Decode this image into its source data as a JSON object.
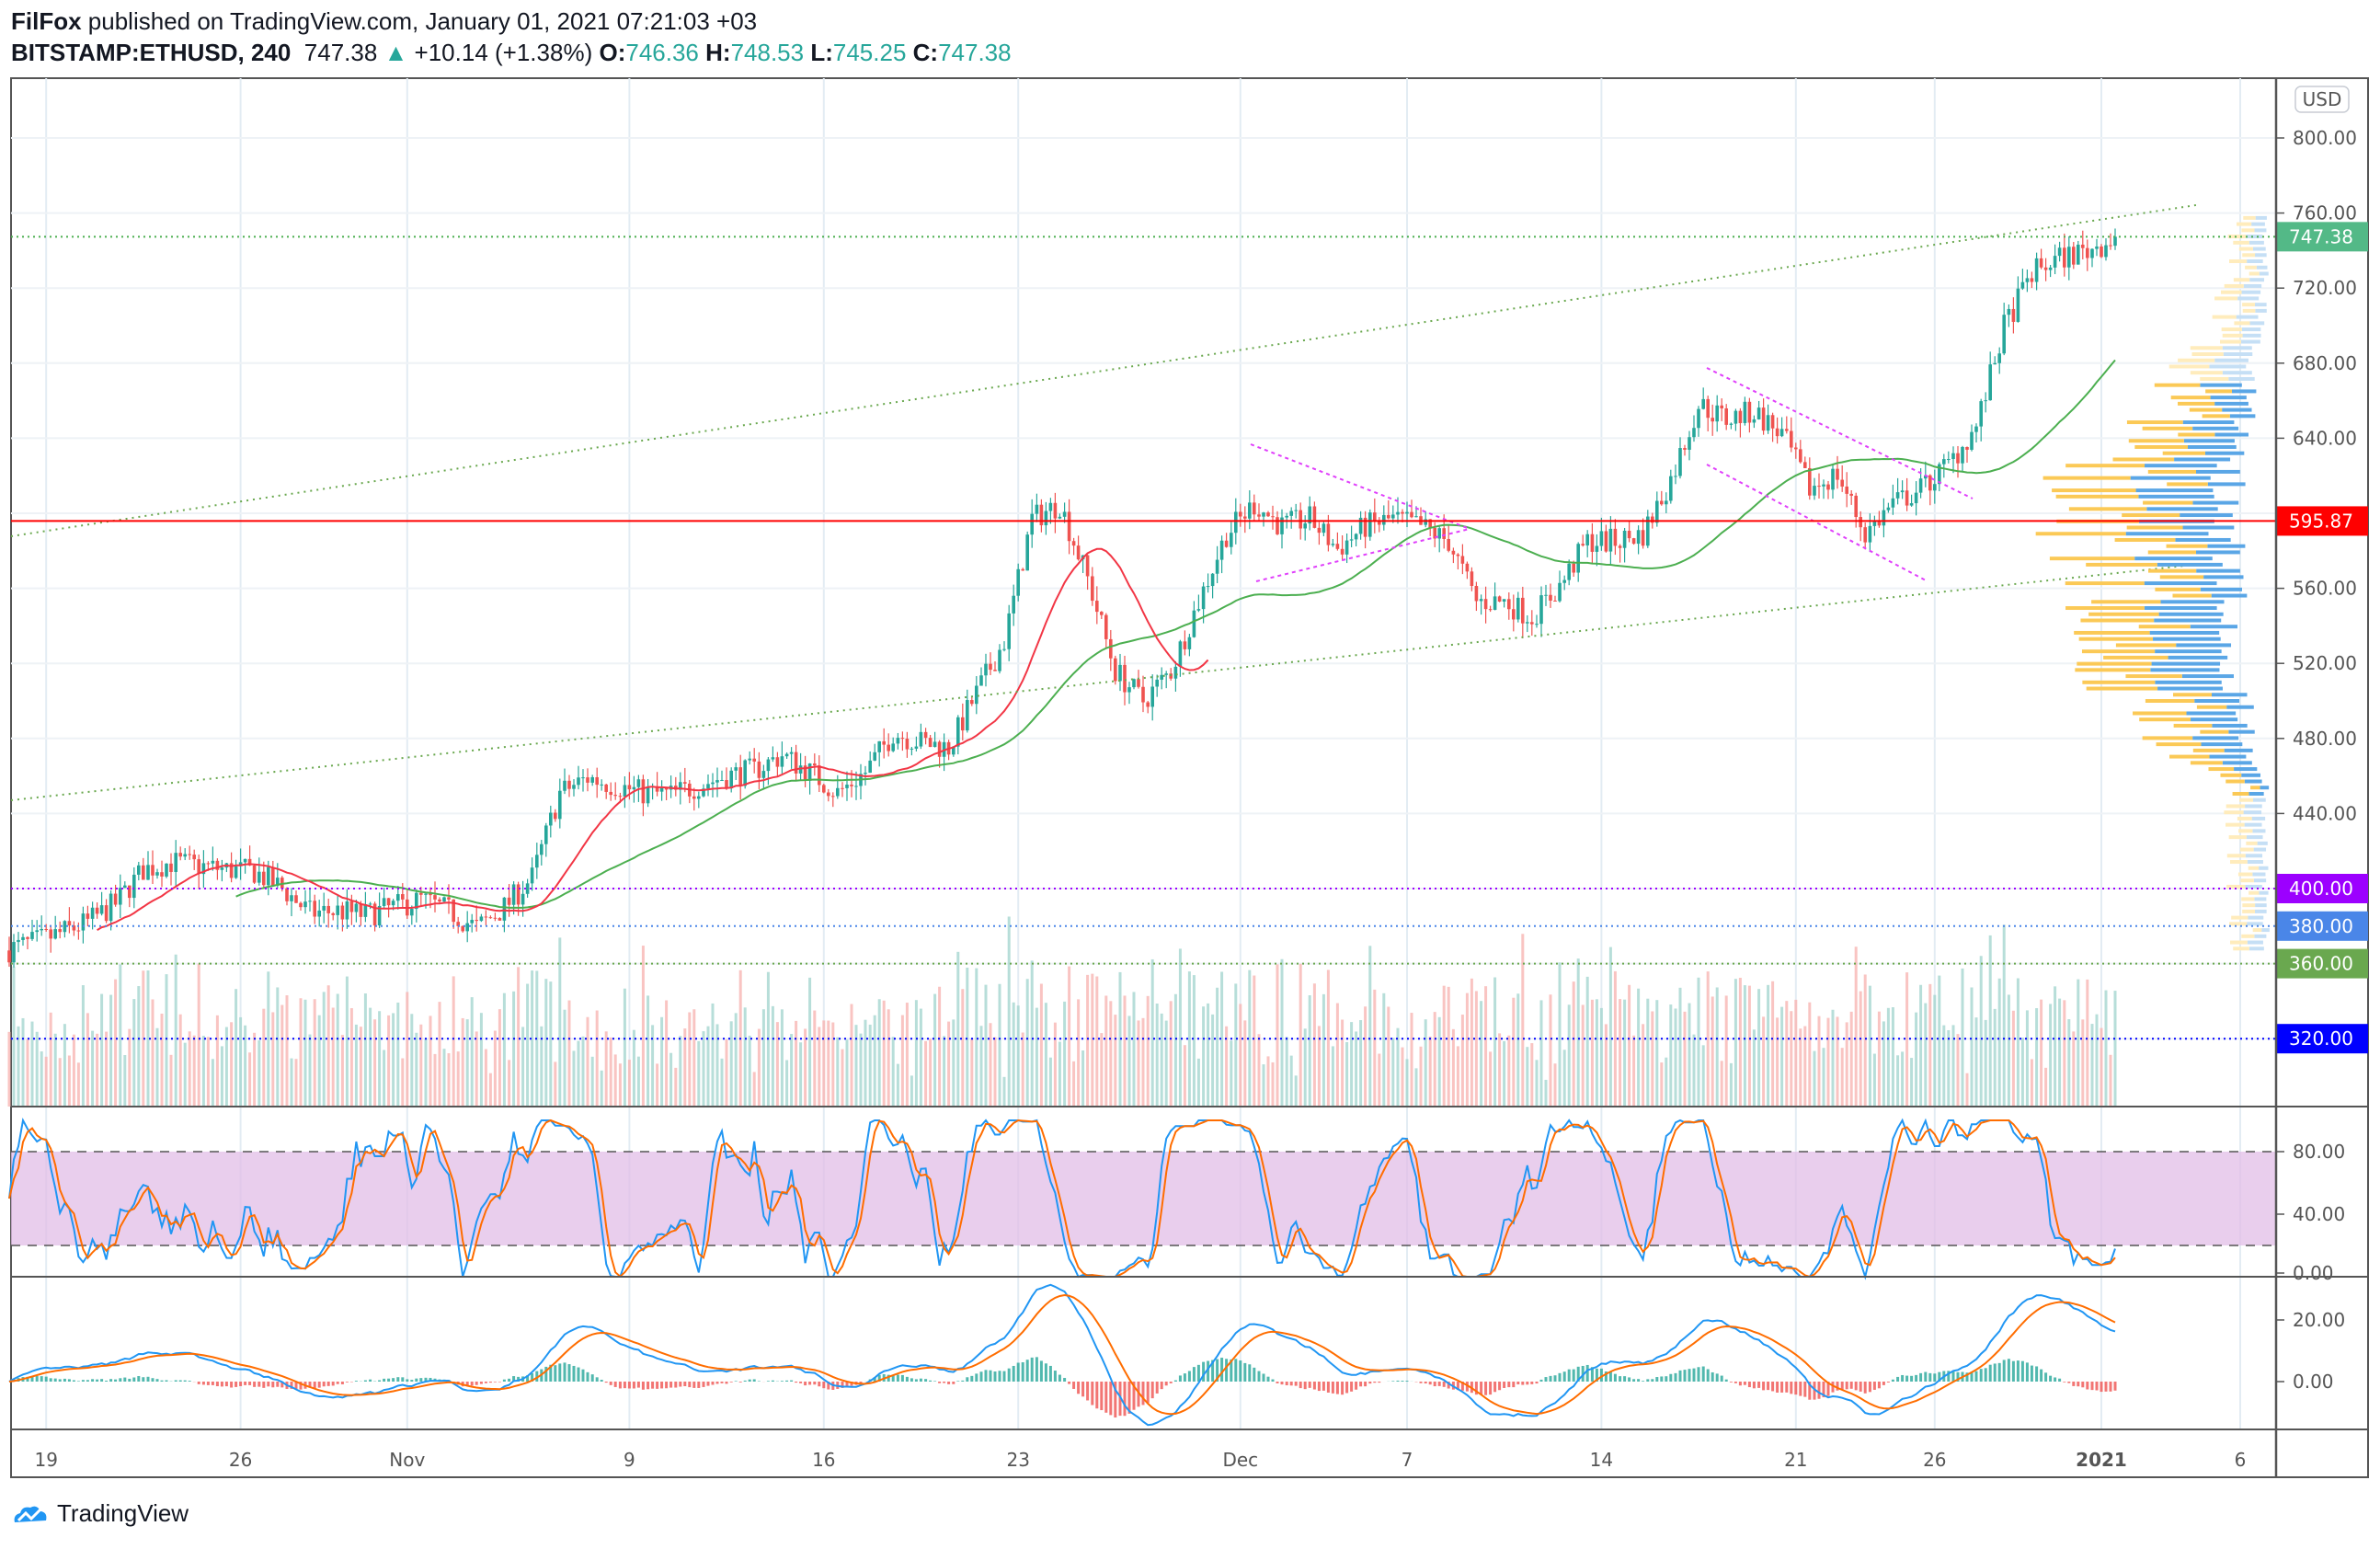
{
  "header": {
    "author": "FilFox",
    "published": "published on TradingView.com, January 01, 2021 07:21:03 +03",
    "symbol": "BITSTAMP:ETHUSD, 240",
    "last": "747.38",
    "change": "+10.14 (+1.38%)",
    "o_label": "O:",
    "o": "746.36",
    "h_label": "H:",
    "h": "748.53",
    "l_label": "L:",
    "l": "745.25",
    "c_label": "C:",
    "c": "747.38"
  },
  "footer": {
    "brand": "TradingView"
  },
  "colors": {
    "up": "#26a69a",
    "down": "#ef5350",
    "ma_green": "#4caf50",
    "ma_red": "#f23645",
    "stoch_fill": "#e1bee7",
    "k": "#2196f3",
    "d": "#ff6d00"
  },
  "chart_data": {
    "type": "candlestick",
    "title": "BITSTAMP:ETHUSD, 240",
    "currency_label": "USD",
    "interval_hours": 4,
    "start_date": "2020-10-18",
    "daily_closes": [
      371,
      376,
      382,
      392,
      410,
      414,
      412,
      410,
      409,
      400,
      387,
      388,
      386,
      390,
      394,
      388,
      379,
      390,
      406,
      451,
      459,
      455,
      451,
      450,
      455,
      460,
      463,
      471,
      462,
      451,
      462,
      483,
      478,
      475,
      504,
      532,
      597,
      605,
      565,
      516,
      500,
      516,
      553,
      589,
      605,
      593,
      597,
      581,
      593,
      597,
      593,
      585,
      553,
      553,
      545,
      561,
      585,
      585,
      589,
      618,
      658,
      650,
      654,
      642,
      613,
      621,
      589,
      605,
      613,
      626,
      646,
      699,
      728,
      736,
      740,
      747
    ],
    "price_ticks": [
      "800.00",
      "760.00",
      "720.00",
      "680.00",
      "640.00",
      "560.00",
      "520.00",
      "480.00",
      "440.00"
    ],
    "price_tick_values": [
      800,
      760,
      720,
      680,
      640,
      560,
      520,
      480,
      440
    ],
    "price_ylim": [
      300,
      820
    ],
    "levels": [
      {
        "label": "747.38",
        "value": 747.38,
        "color": "#4caf50",
        "style": "dotted",
        "badge": "#53b987"
      },
      {
        "label": "595.87",
        "value": 595.87,
        "color": "#ff0000",
        "style": "solid",
        "badge": "#ff0000"
      },
      {
        "label": "400.00",
        "value": 400,
        "color": "#9c00ff",
        "style": "dotted",
        "badge": "#9c00ff"
      },
      {
        "label": "380.00",
        "value": 380,
        "color": "#4a86e8",
        "style": "dotted",
        "badge": "#4a86e8"
      },
      {
        "label": "360.00",
        "value": 360,
        "color": "#6aa84f",
        "style": "dotted",
        "badge": "#6aa84f"
      },
      {
        "label": "320.00",
        "value": 320,
        "color": "#0000ff",
        "style": "dotted",
        "badge": "#0000ff"
      }
    ],
    "stoch_rsi": {
      "ticks": [
        "80.00",
        "40.00",
        "0.00"
      ],
      "tick_values": [
        80,
        40,
        0
      ],
      "upper": 80,
      "lower": 20
    },
    "macd": {
      "ticks": [
        "20.00",
        "0.00"
      ],
      "tick_values": [
        20,
        0
      ]
    },
    "x_ticks": [
      {
        "label": "19",
        "day": 1
      },
      {
        "label": "26",
        "day": 8
      },
      {
        "label": "Nov",
        "day": 14
      },
      {
        "label": "9",
        "day": 22
      },
      {
        "label": "16",
        "day": 29
      },
      {
        "label": "23",
        "day": 36
      },
      {
        "label": "Dec",
        "day": 44
      },
      {
        "label": "7",
        "day": 50
      },
      {
        "label": "14",
        "day": 57
      },
      {
        "label": "21",
        "day": 64
      },
      {
        "label": "26",
        "day": 69
      },
      {
        "label": "2021",
        "day": 75
      },
      {
        "label": "6",
        "day": 80
      }
    ]
  }
}
